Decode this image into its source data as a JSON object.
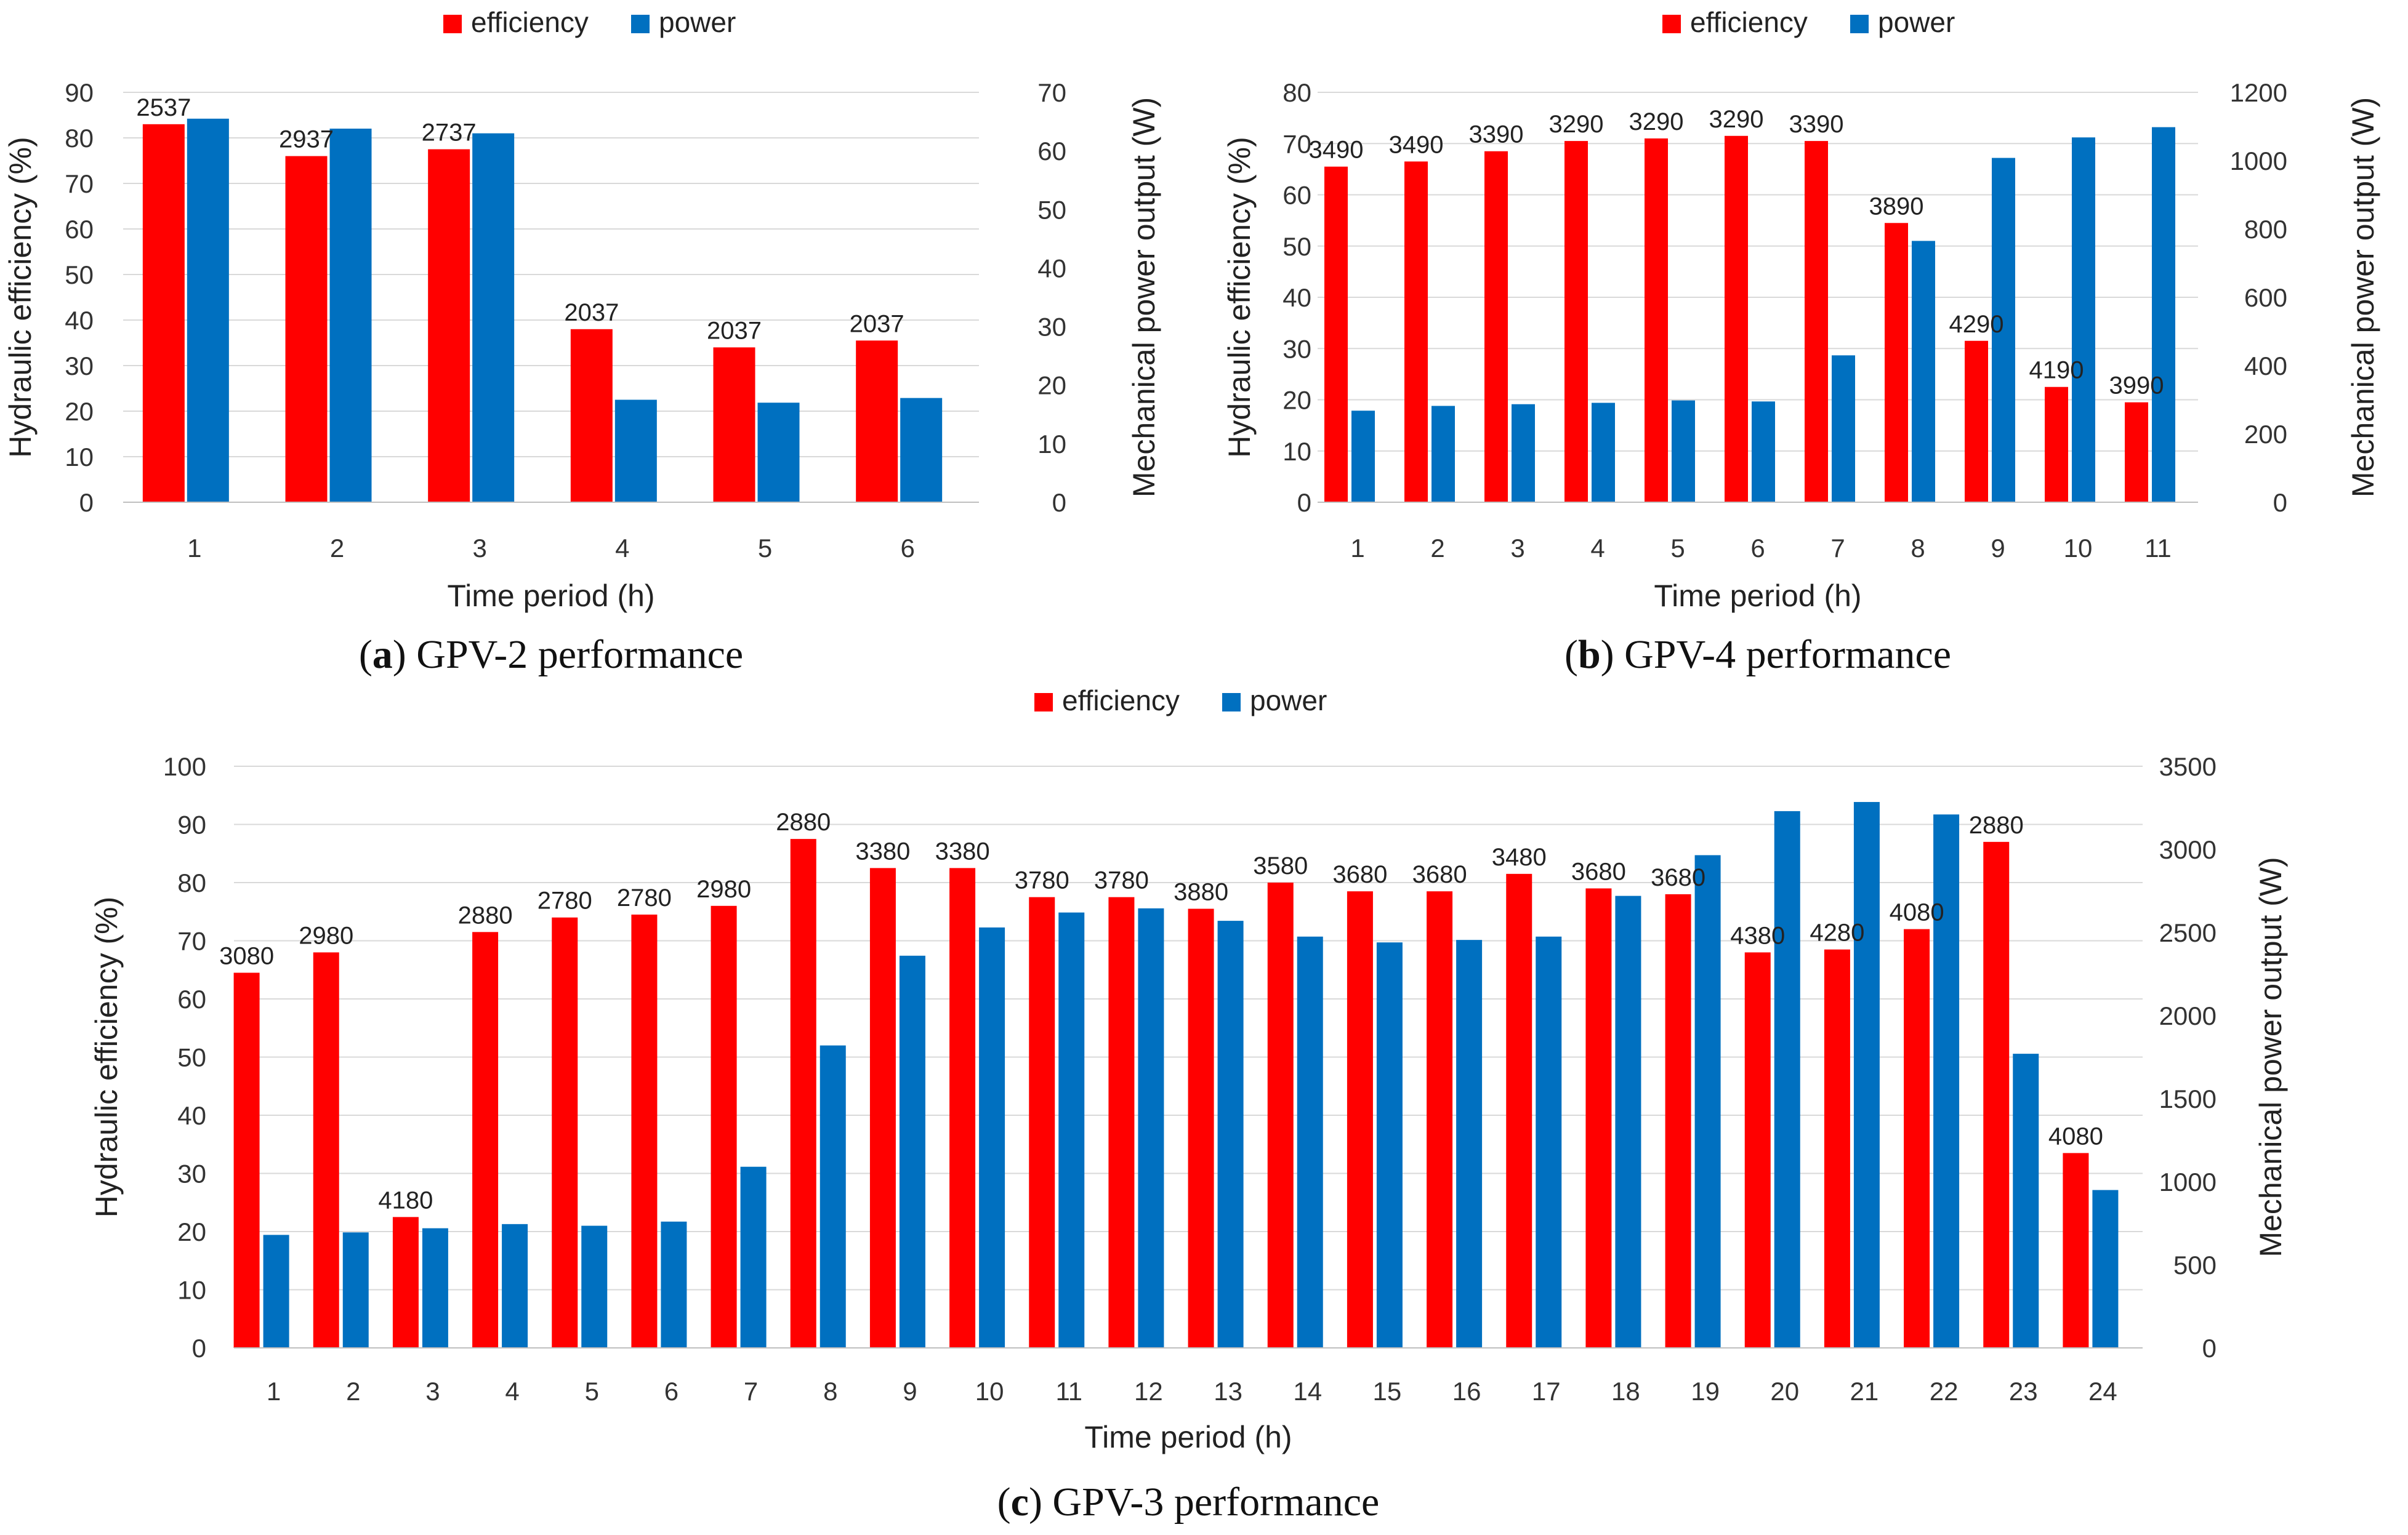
{
  "legend": {
    "efficiency": "efficiency",
    "power": "power"
  },
  "colors": {
    "efficiency": "#ff0000",
    "power": "#0070c0",
    "grid": "#d9d9d9"
  },
  "chart_data": [
    {
      "type": "bar",
      "panel": "a",
      "caption_letter": "a",
      "caption_text": " GPV-2 performance",
      "xlabel": "Time period (h)",
      "ylabel": "Hydraulic efficiency (%)",
      "y2label": "Mechanical power output (W)",
      "ylim": [
        0,
        90
      ],
      "yticks": [
        0,
        10,
        20,
        30,
        40,
        50,
        60,
        70,
        80,
        90
      ],
      "y2lim": [
        0,
        70
      ],
      "y2ticks": [
        0,
        10,
        20,
        30,
        40,
        50,
        60,
        70
      ],
      "categories": [
        "1",
        "2",
        "3",
        "4",
        "5",
        "6"
      ],
      "series": [
        {
          "name": "efficiency",
          "axis": "left",
          "values": [
            83,
            76,
            77.5,
            38,
            34,
            35.5
          ]
        },
        {
          "name": "power",
          "axis": "right",
          "values": [
            65.5,
            63.8,
            63,
            17.5,
            17,
            17.8
          ]
        }
      ],
      "data_labels": [
        "2537",
        "2937",
        "2737",
        "2037",
        "2037",
        "2037"
      ]
    },
    {
      "type": "bar",
      "panel": "b",
      "caption_letter": "b",
      "caption_text": " GPV-4 performance",
      "xlabel": "Time period (h)",
      "ylabel": "Hydraulic efficiency (%)",
      "y2label": "Mechanical power output (W)",
      "ylim": [
        0,
        80
      ],
      "yticks": [
        0,
        10,
        20,
        30,
        40,
        50,
        60,
        70,
        80
      ],
      "y2lim": [
        0,
        1200
      ],
      "y2ticks": [
        0,
        200,
        400,
        600,
        800,
        1000,
        1200
      ],
      "categories": [
        "1",
        "2",
        "3",
        "4",
        "5",
        "6",
        "7",
        "8",
        "9",
        "10",
        "11"
      ],
      "series": [
        {
          "name": "efficiency",
          "axis": "left",
          "values": [
            65.5,
            66.5,
            68.5,
            70.5,
            71,
            71.5,
            70.5,
            54.5,
            31.5,
            22.5,
            19.5
          ]
        },
        {
          "name": "power",
          "axis": "right",
          "values": [
            268,
            282,
            287,
            291,
            298,
            295,
            430,
            765,
            1008,
            1068,
            1098
          ]
        }
      ],
      "data_labels": [
        "3490",
        "3490",
        "3390",
        "3290",
        "3290",
        "3290",
        "3390",
        "3890",
        "4290",
        "4190",
        "3990"
      ]
    },
    {
      "type": "bar",
      "panel": "c",
      "caption_letter": "c",
      "caption_text": " GPV-3 performance",
      "xlabel": "Time period (h)",
      "ylabel": "Hydraulic efficiency (%)",
      "y2label": "Mechanical power output (W)",
      "ylim": [
        0,
        100
      ],
      "yticks": [
        0,
        10,
        20,
        30,
        40,
        50,
        60,
        70,
        80,
        90,
        100
      ],
      "y2lim": [
        0,
        3500
      ],
      "y2ticks": [
        0,
        500,
        1000,
        1500,
        2000,
        2500,
        3000,
        3500
      ],
      "categories": [
        "1",
        "2",
        "3",
        "4",
        "5",
        "6",
        "7",
        "8",
        "9",
        "10",
        "11",
        "12",
        "13",
        "14",
        "15",
        "16",
        "17",
        "18",
        "19",
        "20",
        "21",
        "22",
        "23",
        "24"
      ],
      "series": [
        {
          "name": "efficiency",
          "axis": "left",
          "values": [
            64.5,
            68,
            22.5,
            71.5,
            74,
            74.5,
            76,
            87.5,
            82.5,
            82.5,
            77.5,
            77.5,
            75.5,
            80,
            78.5,
            78.5,
            81.5,
            79,
            78,
            68,
            68.5,
            72,
            87,
            33.5
          ]
        },
        {
          "name": "power",
          "axis": "right",
          "values": [
            680,
            695,
            720,
            745,
            735,
            760,
            1090,
            1820,
            2360,
            2530,
            2620,
            2645,
            2570,
            2475,
            2440,
            2455,
            2475,
            2720,
            2965,
            3230,
            3285,
            3210,
            1770,
            950
          ]
        }
      ],
      "data_labels": [
        "3080",
        "2980",
        "4180",
        "2880",
        "2780",
        "2780",
        "2980",
        "2880",
        "3380",
        "3380",
        "3780",
        "3780",
        "3880",
        "3580",
        "3680",
        "3680",
        "3480",
        "3680",
        "3680",
        "4380",
        "4280",
        "4080",
        "2880",
        "4080"
      ]
    }
  ]
}
